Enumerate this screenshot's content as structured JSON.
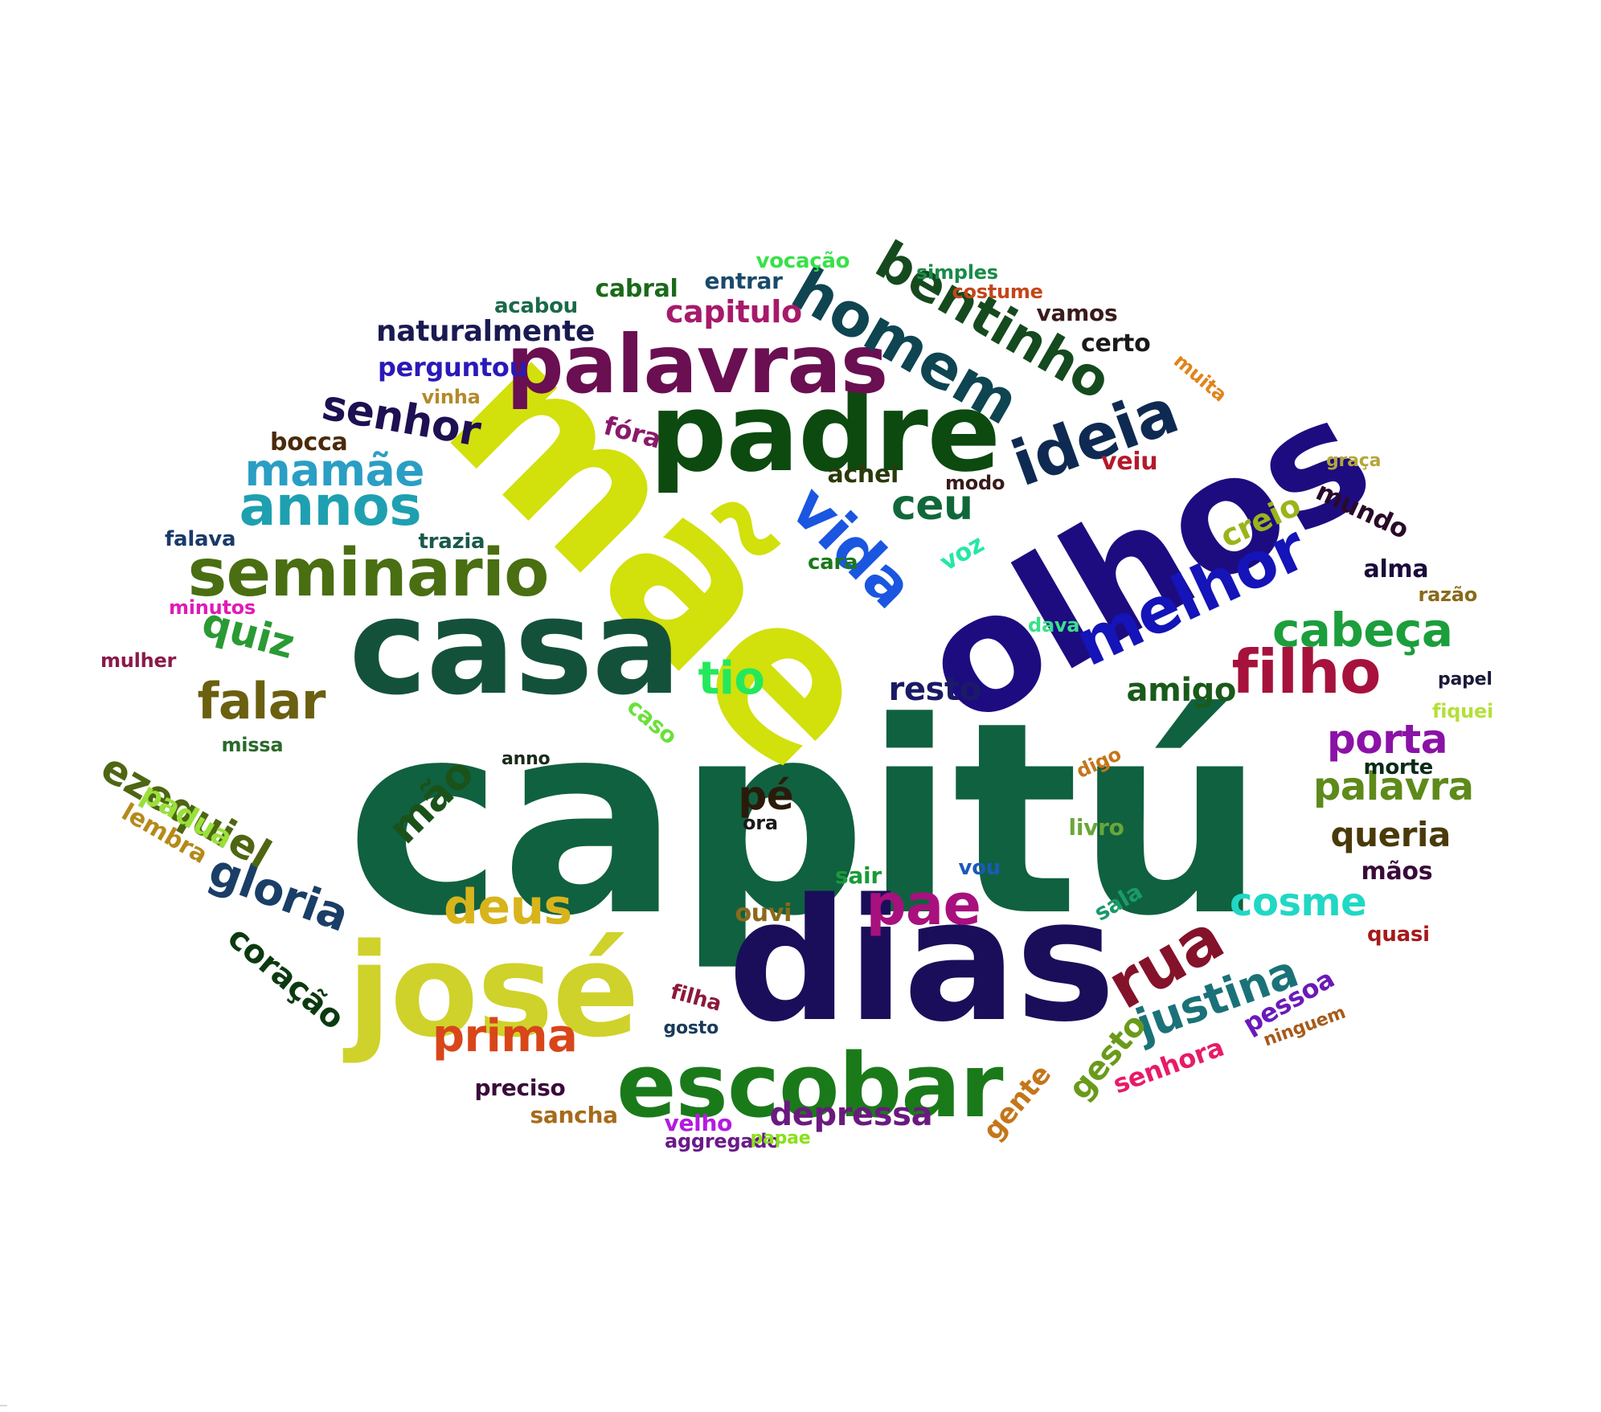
{
  "words": [
    {
      "text": "capitú",
      "color": "#10613f"
    },
    {
      "text": "mãe",
      "color": "#d2e00c"
    },
    {
      "text": "olhos",
      "color": "#1d0c80"
    },
    {
      "text": "dias",
      "color": "#1a0e5a"
    },
    {
      "text": "casa",
      "color": "#14513b"
    },
    {
      "text": "josé",
      "color": "#cfd22a"
    },
    {
      "text": "padre",
      "color": "#0c4a0f"
    },
    {
      "text": "escobar",
      "color": "#1a7a1a"
    },
    {
      "text": "palavras",
      "color": "#6a0f52"
    },
    {
      "text": "homem",
      "color": "#0f4451"
    },
    {
      "text": "seminario",
      "color": "#4a6e12"
    },
    {
      "text": "melhor",
      "color": "#1414b8"
    },
    {
      "text": "filho",
      "color": "#a6123c"
    },
    {
      "text": "ideia",
      "color": "#0f2a52"
    },
    {
      "text": "bentinho",
      "color": "#154a1e"
    },
    {
      "text": "rua",
      "color": "#84122a"
    },
    {
      "text": "vida",
      "color": "#1a56e0"
    },
    {
      "text": "annos",
      "color": "#1ea0b0"
    },
    {
      "text": "pae",
      "color": "#a8107e"
    },
    {
      "text": "deus",
      "color": "#d8b41c"
    },
    {
      "text": "falar",
      "color": "#6a6010"
    },
    {
      "text": "justina",
      "color": "#1a7278"
    },
    {
      "text": "cabeça",
      "color": "#1c9e3c"
    },
    {
      "text": "prima",
      "color": "#d8461a"
    },
    {
      "text": "gloria",
      "color": "#1a3e66"
    },
    {
      "text": "ezequiel",
      "color": "#4e6612"
    },
    {
      "text": "mamãe",
      "color": "#2a9ec4"
    },
    {
      "text": "porta",
      "color": "#8a12a6"
    },
    {
      "text": "palavra",
      "color": "#5e8a1a"
    },
    {
      "text": "ceu",
      "color": "#10683a"
    },
    {
      "text": "tio",
      "color": "#24e85c"
    },
    {
      "text": "mão",
      "color": "#1a521a"
    },
    {
      "text": "senhor",
      "color": "#1e1052"
    },
    {
      "text": "cosme",
      "color": "#20d8c4"
    },
    {
      "text": "quiz",
      "color": "#2a9a34"
    },
    {
      "text": "coração",
      "color": "#0c3a10"
    },
    {
      "text": "pé",
      "color": "#2a1a0a"
    },
    {
      "text": "depressa",
      "color": "#6a1a7e"
    },
    {
      "text": "queria",
      "color": "#4a3a0a"
    },
    {
      "text": "resto",
      "color": "#1a1a66"
    },
    {
      "text": "amigo",
      "color": "#1a5a1a"
    },
    {
      "text": "gesto",
      "color": "#6a9a1a"
    },
    {
      "text": "creio",
      "color": "#9ab41a"
    },
    {
      "text": "padua",
      "color": "#9ae03a"
    },
    {
      "text": "naturalmente",
      "color": "#1a1a52"
    },
    {
      "text": "perguntou",
      "color": "#2a1ab8"
    },
    {
      "text": "capitulo",
      "color": "#a61a6a"
    },
    {
      "text": "pessoa",
      "color": "#6a1ab8"
    },
    {
      "text": "lembra",
      "color": "#b48a1a"
    },
    {
      "text": "gente",
      "color": "#c4761a"
    },
    {
      "text": "senhora",
      "color": "#e81a6a"
    },
    {
      "text": "mundo",
      "color": "#2a0a2a"
    },
    {
      "text": "achei",
      "color": "#2a3a0a"
    },
    {
      "text": "voz",
      "color": "#24e8a4"
    },
    {
      "text": "bocca",
      "color": "#4a2a0a"
    },
    {
      "text": "preciso",
      "color": "#3a0a3a"
    },
    {
      "text": "sancha",
      "color": "#a66a1a"
    },
    {
      "text": "alma",
      "color": "#1a0a3a"
    },
    {
      "text": "mãos",
      "color": "#3a0a3a"
    },
    {
      "text": "velho",
      "color": "#b41ae0"
    },
    {
      "text": "sala",
      "color": "#1a9a6a"
    },
    {
      "text": "fóra",
      "color": "#8a1a6a"
    },
    {
      "text": "cara",
      "color": "#1a7a1a"
    },
    {
      "text": "ouvi",
      "color": "#8a6a1a"
    },
    {
      "text": "veiu",
      "color": "#b41a2a"
    },
    {
      "text": "morte",
      "color": "#0a2a1a"
    },
    {
      "text": "filha",
      "color": "#8a1a3a"
    },
    {
      "text": "razão",
      "color": "#8a6a1a"
    },
    {
      "text": "digo",
      "color": "#c4761a"
    },
    {
      "text": "ninguem",
      "color": "#a65a1a"
    },
    {
      "text": "livro",
      "color": "#6aa63a"
    },
    {
      "text": "sair",
      "color": "#1a9a3a"
    },
    {
      "text": "vou",
      "color": "#1a5ab8"
    },
    {
      "text": "quasi",
      "color": "#a61a1a"
    },
    {
      "text": "certo",
      "color": "#1a1a1a"
    },
    {
      "text": "ora",
      "color": "#1a1a1a"
    },
    {
      "text": "modo",
      "color": "#3a1a1a"
    },
    {
      "text": "cabral",
      "color": "#1a6a1a"
    },
    {
      "text": "entrar",
      "color": "#1a4a6a"
    },
    {
      "text": "acabou",
      "color": "#1a6a4a"
    },
    {
      "text": "vamos",
      "color": "#3a1a1a"
    },
    {
      "text": "muita",
      "color": "#e0841a"
    },
    {
      "text": "vinha",
      "color": "#b48a2a"
    },
    {
      "text": "graça",
      "color": "#b4a63a"
    },
    {
      "text": "falava",
      "color": "#1a3a6a"
    },
    {
      "text": "trazia",
      "color": "#1a5a4a"
    },
    {
      "text": "minutos",
      "color": "#e01ab8"
    },
    {
      "text": "mulher",
      "color": "#8a1a4a"
    },
    {
      "text": "missa",
      "color": "#2a6a2a"
    },
    {
      "text": "caso",
      "color": "#6ae03a"
    },
    {
      "text": "anno",
      "color": "#1a2a1a"
    },
    {
      "text": "dava",
      "color": "#3ae08a"
    },
    {
      "text": "papel",
      "color": "#1a1a3a"
    },
    {
      "text": "fiquei",
      "color": "#b4e03a"
    },
    {
      "text": "vocação",
      "color": "#3ae04a"
    },
    {
      "text": "simples",
      "color": "#1a8a4a"
    },
    {
      "text": "costume",
      "color": "#c4461a"
    },
    {
      "text": "gosto",
      "color": "#1a3a5a"
    },
    {
      "text": "aggregado",
      "color": "#6a1a8a"
    },
    {
      "text": "papae",
      "color": "#8ae01a"
    }
  ]
}
